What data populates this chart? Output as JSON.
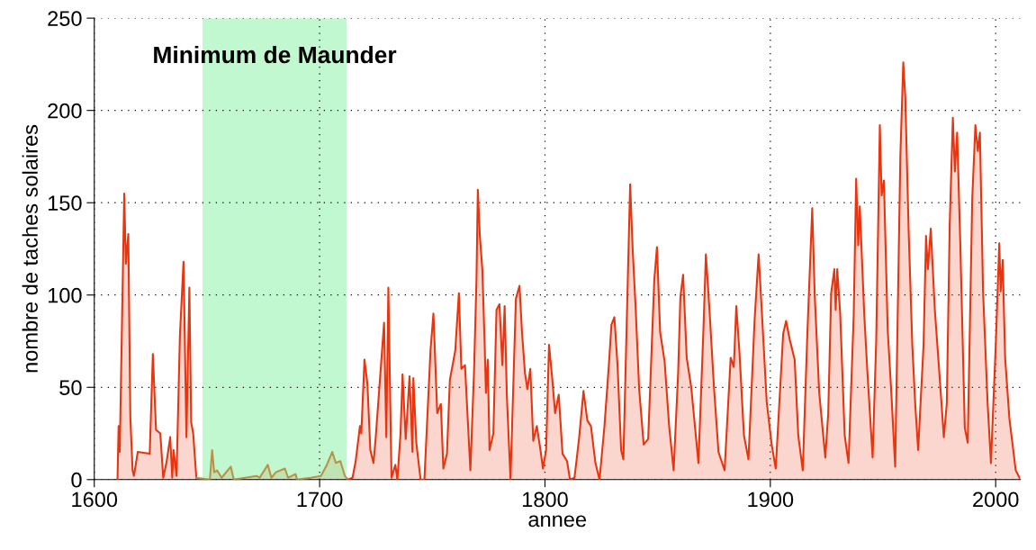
{
  "chart_data": {
    "type": "area",
    "xlabel": "annee",
    "ylabel": "nombre de taches solaires",
    "xlim": [
      1600,
      2011
    ],
    "xticks": [
      1600,
      1700,
      1800,
      1900,
      2000
    ],
    "ylim": [
      0,
      250
    ],
    "yticks": [
      0,
      50,
      100,
      150,
      200,
      250
    ],
    "grid": true,
    "legend": false,
    "bands": [
      {
        "axis": "x",
        "from": 1648,
        "to": 1712,
        "label": "Minimum de Maunder",
        "color": "#c2f8cf"
      }
    ],
    "series": [
      {
        "color": "#e8340f",
        "x": [
          1610.3,
          1610.8,
          1611.3,
          1613.3,
          1614,
          1615.1,
          1616,
          1617,
          1617.6,
          1619.3,
          1624.6,
          1626,
          1627.4,
          1629.3,
          1630.6,
          1632,
          1633.7,
          1634.6,
          1635.2,
          1636.5,
          1638,
          1639.6,
          1640.9,
          1642.2,
          1643,
          1643.9,
          1645.3
        ],
        "values": [
          0,
          29,
          15,
          155,
          117,
          133,
          34,
          5,
          2,
          15,
          14,
          68,
          27,
          25,
          1,
          9,
          23,
          1,
          16,
          2,
          78,
          118,
          23,
          104,
          31,
          25,
          1
        ]
      },
      {
        "color": "#b8924a",
        "x": [
          1645.3,
          1651.3,
          1652.3,
          1653.2,
          1654.5,
          1656.5,
          1660.6,
          1661.9,
          1672,
          1673.4,
          1677,
          1678.6,
          1680.6,
          1684.6,
          1686,
          1689.3,
          1690,
          1696,
          1700.6,
          1703.2,
          1705.6,
          1707.2,
          1709.2,
          1711.2,
          1712.6
        ],
        "values": [
          1,
          0,
          16,
          4,
          5,
          1,
          7,
          0,
          2,
          1,
          8,
          1,
          4,
          6,
          1,
          3,
          0,
          1,
          2,
          8,
          15,
          9,
          10,
          2,
          0
        ]
      },
      {
        "color": "#e8340f",
        "x": [
          1712.6,
          1714.6,
          1716,
          1717.9,
          1718.5,
          1719.9,
          1721.2,
          1722.5,
          1723.9,
          1724.9,
          1727,
          1728.6,
          1729.6,
          1730.5,
          1731.9,
          1733.6,
          1734.5,
          1735.9,
          1736.8,
          1738.2,
          1739.9,
          1741.2,
          1741.6,
          1742.9,
          1744.8,
          1746.5,
          1749.2,
          1750.5,
          1752.2,
          1753.8,
          1754.9,
          1756.5,
          1757.8,
          1760.2,
          1761.8,
          1762.9,
          1764.5,
          1765.8,
          1766.9,
          1768.5,
          1769.6,
          1770.2,
          1771.1,
          1772.2,
          1773.2,
          1773.8,
          1774.6,
          1775.4,
          1777.1,
          1778.5,
          1779.8,
          1781.1,
          1782.1,
          1783.1,
          1784.7,
          1787.1,
          1788.7,
          1789.8,
          1791.1,
          1792.2,
          1793.5,
          1794.8,
          1796.4,
          1798,
          1799.1,
          1800.5,
          1801.8,
          1803.2,
          1804.5,
          1806.1,
          1807.8,
          1809.8,
          1811.1,
          1813.1,
          1815.1,
          1817.1,
          1818.8,
          1820.4,
          1822.4,
          1824.2,
          1826.4,
          1828.4,
          1829.5,
          1830.8,
          1832.2,
          1833.8,
          1834.8,
          1836.4,
          1837.8,
          1838.9,
          1840.2,
          1841.8,
          1843.8,
          1845.8,
          1847.1,
          1848.5,
          1849.7,
          1851.1,
          1853.1,
          1855.1,
          1857.1,
          1859.1,
          1860.1,
          1861.3,
          1862.9,
          1864.9,
          1868.1,
          1870.4,
          1871.4,
          1873,
          1875,
          1877,
          1879.7,
          1882.4,
          1883.8,
          1884.9,
          1886.3,
          1888.3,
          1890.3,
          1893,
          1894.8,
          1896.1,
          1898.4,
          1900.6,
          1902.4,
          1905.7,
          1907,
          1908.6,
          1910.8,
          1912.4,
          1914.4,
          1916.4,
          1918.6,
          1919.7,
          1921.7,
          1924.4,
          1925.7,
          1927,
          1928.4,
          1929,
          1929.7,
          1931,
          1933,
          1934.7,
          1937,
          1938.1,
          1939,
          1939.7,
          1941.7,
          1943,
          1945.4,
          1947,
          1948.6,
          1949.4,
          1950.4,
          1952.1,
          1953.7,
          1955.4,
          1957.7,
          1959,
          1959.9,
          1961.4,
          1963,
          1964.3,
          1965.6,
          1968,
          1969.1,
          1969.9,
          1971.2,
          1973,
          1975,
          1977,
          1978.3,
          1979.6,
          1981,
          1981.9,
          1982.9,
          1984.3,
          1986.3,
          1987.6,
          1989.6,
          1991,
          1992.1,
          1993,
          1994.4,
          1996.4,
          1997.9,
          2000.1,
          2001.6,
          2002.2,
          2003.1,
          2004.2,
          2006.1,
          2008.9,
          2010.6
        ],
        "values": [
          0,
          1,
          10,
          29,
          25,
          65,
          52,
          16,
          9,
          23,
          58,
          85,
          23,
          104,
          1,
          8,
          0,
          25,
          57,
          22,
          56,
          15,
          55,
          20,
          0,
          0,
          70,
          90,
          36,
          41,
          6,
          14,
          54,
          70,
          101,
          60,
          62,
          31,
          5,
          58,
          108,
          157,
          132,
          114,
          75,
          47,
          65,
          16,
          25,
          92,
          95,
          62,
          94,
          45,
          0,
          98,
          105,
          80,
          58,
          49,
          60,
          21,
          29,
          16,
          6,
          16,
          73,
          55,
          36,
          46,
          14,
          10,
          0,
          1,
          22,
          48,
          32,
          29,
          9,
          0,
          29,
          63,
          84,
          88,
          62,
          16,
          11,
          91,
          160,
          125,
          94,
          49,
          19,
          22,
          63,
          108,
          126,
          80,
          64,
          29,
          5,
          58,
          99,
          111,
          66,
          50,
          9,
          84,
          122,
          92,
          50,
          15,
          5,
          66,
          61,
          94,
          69,
          24,
          11,
          86,
          122,
          94,
          42,
          19,
          6,
          79,
          86,
          76,
          65,
          24,
          5,
          78,
          147,
          100,
          47,
          12,
          36,
          101,
          114,
          92,
          114,
          90,
          24,
          9,
          89,
          163,
          127,
          148,
          89,
          60,
          12,
          76,
          192,
          154,
          162,
          81,
          47,
          7,
          175,
          226,
          207,
          134,
          73,
          41,
          16,
          73,
          132,
          114,
          136,
          92,
          58,
          23,
          41,
          138,
          196,
          167,
          188,
          128,
          28,
          20,
          152,
          192,
          178,
          188,
          102,
          42,
          9,
          75,
          128,
          102,
          119,
          66,
          33,
          5,
          1
        ]
      }
    ]
  }
}
